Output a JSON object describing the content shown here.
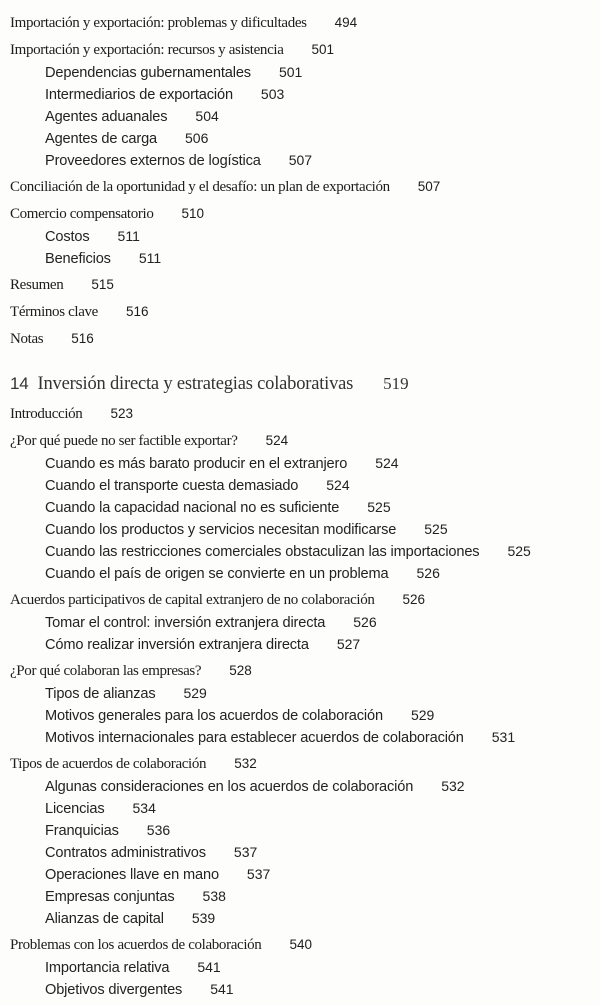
{
  "toc": {
    "entries": [
      {
        "level": "main",
        "text": "Importación y exportación: problemas y dificultades",
        "page": "494"
      },
      {
        "level": "main",
        "text": "Importación y exportación: recursos y asistencia",
        "page": "501"
      },
      {
        "level": "sub",
        "text": "Dependencias gubernamentales",
        "page": "501"
      },
      {
        "level": "sub",
        "text": "Intermediarios de exportación",
        "page": "503"
      },
      {
        "level": "sub",
        "text": "Agentes aduanales",
        "page": "504"
      },
      {
        "level": "sub",
        "text": "Agentes de carga",
        "page": "506"
      },
      {
        "level": "sub",
        "text": "Proveedores externos de logística",
        "page": "507"
      },
      {
        "level": "main",
        "text": "Conciliación de la oportunidad y el desafío: un plan de exportación",
        "page": "507"
      },
      {
        "level": "main",
        "text": "Comercio compensatorio",
        "page": "510"
      },
      {
        "level": "sub",
        "text": "Costos",
        "page": "511"
      },
      {
        "level": "sub",
        "text": "Beneficios",
        "page": "511"
      },
      {
        "level": "main",
        "text": "Resumen",
        "page": "515"
      },
      {
        "level": "main",
        "text": "Términos clave",
        "page": "516"
      },
      {
        "level": "main",
        "text": "Notas",
        "page": "516"
      },
      {
        "level": "chapter",
        "number": "14",
        "text": "Inversión directa y estrategias colaborativas",
        "page": "519"
      },
      {
        "level": "main",
        "text": "Introducción",
        "page": "523"
      },
      {
        "level": "main",
        "text": "¿Por qué puede no ser factible exportar?",
        "page": "524"
      },
      {
        "level": "sub",
        "text": "Cuando es más barato producir en el extranjero",
        "page": "524"
      },
      {
        "level": "sub",
        "text": "Cuando el transporte cuesta demasiado",
        "page": "524"
      },
      {
        "level": "sub",
        "text": "Cuando la capacidad nacional no es suficiente",
        "page": "525"
      },
      {
        "level": "sub",
        "text": "Cuando los productos y servicios necesitan modificarse",
        "page": "525"
      },
      {
        "level": "sub",
        "text": "Cuando las restricciones comerciales obstaculizan las importaciones",
        "page": "525"
      },
      {
        "level": "sub",
        "text": "Cuando el país de origen se convierte en un problema",
        "page": "526"
      },
      {
        "level": "main",
        "text": "Acuerdos participativos de capital extranjero de no colaboración",
        "page": "526"
      },
      {
        "level": "sub",
        "text": "Tomar el control: inversión extranjera directa",
        "page": "526"
      },
      {
        "level": "sub",
        "text": "Cómo realizar inversión extranjera directa",
        "page": "527"
      },
      {
        "level": "main",
        "text": "¿Por qué colaboran las empresas?",
        "page": "528"
      },
      {
        "level": "sub",
        "text": "Tipos de alianzas",
        "page": "529"
      },
      {
        "level": "sub",
        "text": "Motivos generales para los acuerdos de colaboración",
        "page": "529"
      },
      {
        "level": "sub",
        "text": "Motivos internacionales para establecer acuerdos de colaboración",
        "page": "531"
      },
      {
        "level": "main",
        "text": "Tipos de acuerdos de colaboración",
        "page": "532"
      },
      {
        "level": "sub",
        "text": "Algunas consideraciones en los acuerdos de colaboración",
        "page": "532"
      },
      {
        "level": "sub",
        "text": "Licencias",
        "page": "534"
      },
      {
        "level": "sub",
        "text": "Franquicias",
        "page": "536"
      },
      {
        "level": "sub",
        "text": "Contratos administrativos",
        "page": "537"
      },
      {
        "level": "sub",
        "text": "Operaciones llave en mano",
        "page": "537"
      },
      {
        "level": "sub",
        "text": "Empresas conjuntas",
        "page": "538"
      },
      {
        "level": "sub",
        "text": "Alianzas de capital",
        "page": "539"
      },
      {
        "level": "main",
        "text": "Problemas con los acuerdos de colaboración",
        "page": "540"
      },
      {
        "level": "sub",
        "text": "Importancia relativa",
        "page": "541"
      },
      {
        "level": "sub",
        "text": "Objetivos divergentes",
        "page": "541"
      }
    ]
  }
}
